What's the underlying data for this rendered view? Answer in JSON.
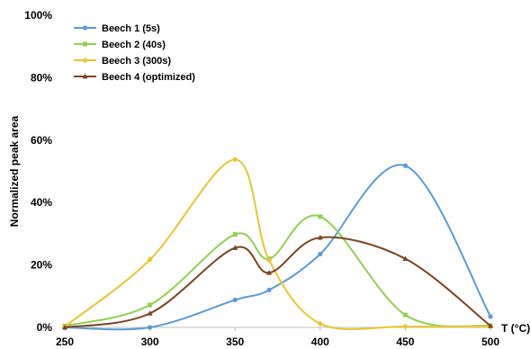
{
  "chart_data": {
    "type": "line",
    "title": "",
    "xlabel": "T (°C)",
    "ylabel": "Normalized peak area",
    "xlim": [
      250,
      500
    ],
    "ylim": [
      0,
      100
    ],
    "x_ticks": [
      250,
      300,
      350,
      400,
      450,
      500
    ],
    "x_tick_labels": [
      "250",
      "300",
      "350",
      "400",
      "450",
      "500"
    ],
    "y_ticks": [
      0,
      20,
      40,
      60,
      80,
      100
    ],
    "y_tick_labels": [
      "0%",
      "20%",
      "40%",
      "60%",
      "80%",
      "100%"
    ],
    "grid": false,
    "legend_position": "top-left",
    "smooth": true,
    "series": [
      {
        "name": "Beech 1 (5s)",
        "color": "#5b9bd5",
        "marker": "circle",
        "x": [
          250,
          300,
          350,
          370,
          400,
          450,
          500
        ],
        "y": [
          0,
          0,
          8.8,
          12,
          23.5,
          51.8,
          3.5
        ]
      },
      {
        "name": "Beech 2 (40s)",
        "color": "#92d050",
        "marker": "square",
        "x": [
          250,
          300,
          350,
          370,
          400,
          450,
          500
        ],
        "y": [
          0.5,
          7.2,
          29.8,
          22,
          35.5,
          4,
          0.5
        ]
      },
      {
        "name": "Beech 3 (300s)",
        "color": "#e8c531",
        "marker": "diamond",
        "x": [
          250,
          300,
          350,
          370,
          400,
          450,
          500
        ],
        "y": [
          0.3,
          21.7,
          53.8,
          21.5,
          1.2,
          0.3,
          0.3
        ]
      },
      {
        "name": "Beech 4 (optimized)",
        "color": "#7b4423",
        "marker": "triangle",
        "x": [
          250,
          300,
          350,
          370,
          400,
          450,
          500
        ],
        "y": [
          0,
          4.5,
          25.5,
          17.5,
          28.8,
          22,
          0.5
        ]
      }
    ]
  }
}
